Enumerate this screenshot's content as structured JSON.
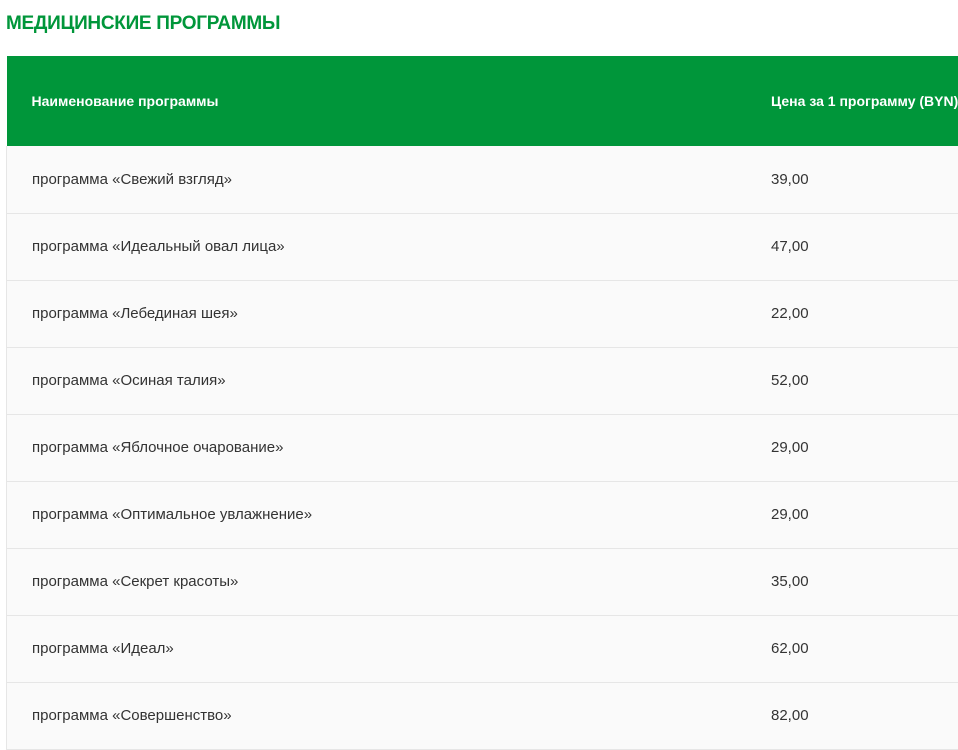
{
  "title": "МЕДИЦИНСКИЕ ПРОГРАММЫ",
  "columns": [
    "Наименование программы",
    "Цена за 1 программу (BYN)"
  ],
  "rows": [
    {
      "name": "программа «Свежий взгляд»",
      "price": "39,00"
    },
    {
      "name": "программа «Идеальный овал лица»",
      "price": "47,00"
    },
    {
      "name": "программа «Лебединая шея»",
      "price": "22,00"
    },
    {
      "name": "программа «Осиная талия»",
      "price": "52,00"
    },
    {
      "name": "программа «Яблочное очарование»",
      "price": "29,00"
    },
    {
      "name": "программа «Оптимальное увлажнение»",
      "price": "29,00"
    },
    {
      "name": "программа «Секрет красоты»",
      "price": "35,00"
    },
    {
      "name": "программа «Идеал»",
      "price": "62,00"
    },
    {
      "name": "программа «Совершенство»",
      "price": "82,00"
    }
  ],
  "colors": {
    "accent": "#00963a"
  }
}
